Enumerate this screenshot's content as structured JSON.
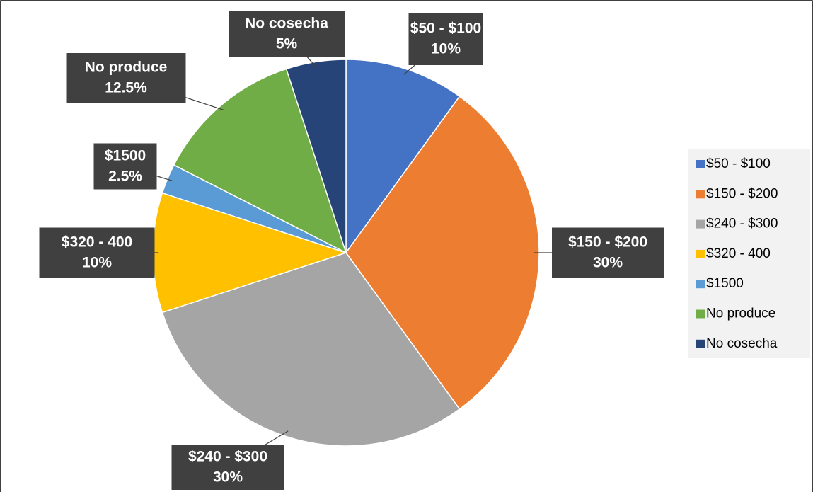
{
  "chart_data": {
    "type": "pie",
    "categories": [
      "$50 - $100",
      "$150 - $200",
      "$240 - $300",
      "$320 - 400",
      "$1500",
      "No produce",
      "No cosecha"
    ],
    "values": [
      10,
      30,
      30,
      10,
      2.5,
      12.5,
      5
    ],
    "value_labels": [
      "10%",
      "30%",
      "30%",
      "10%",
      "2.5%",
      "12.5%",
      "5%"
    ],
    "colors": [
      "#4472c4",
      "#ed7d31",
      "#a5a5a5",
      "#ffc000",
      "#5b9bd5",
      "#70ad47",
      "#264478"
    ],
    "legend": "right"
  }
}
